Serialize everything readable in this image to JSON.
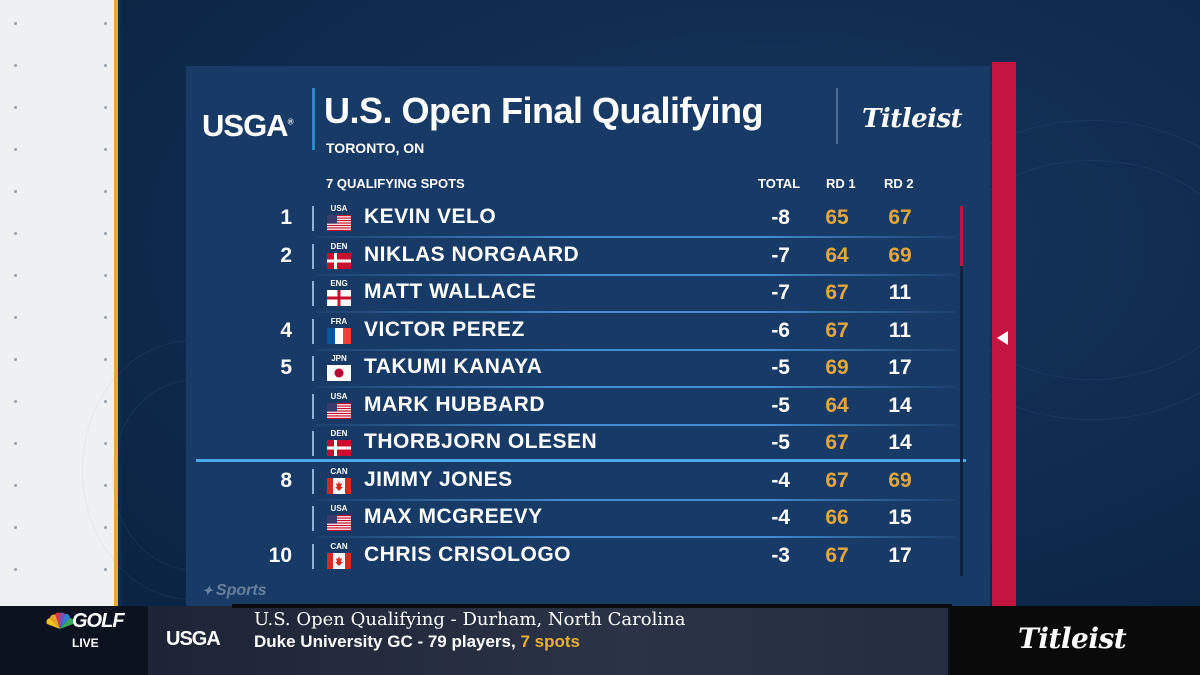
{
  "header": {
    "org_logo": "USGA",
    "title": "U.S. Open Final Qualifying",
    "location": "TORONTO, ON",
    "sponsor_logo": "Titleist"
  },
  "columns": {
    "spots": "7 QUALIFYING SPOTS",
    "total": "TOTAL",
    "rd1": "RD 1",
    "rd2": "RD 2"
  },
  "rows": [
    {
      "pos": "1",
      "country": "USA",
      "name": "KEVIN VELO",
      "total": "-8",
      "rd1": "65",
      "rd2": "67",
      "rd2_final": true
    },
    {
      "pos": "2",
      "country": "DEN",
      "name": "NIKLAS NORGAARD",
      "total": "-7",
      "rd1": "64",
      "rd2": "69",
      "rd2_final": true
    },
    {
      "pos": "",
      "country": "ENG",
      "name": "MATT WALLACE",
      "total": "-7",
      "rd1": "67",
      "rd2": "11",
      "rd2_final": false
    },
    {
      "pos": "4",
      "country": "FRA",
      "name": "VICTOR PEREZ",
      "total": "-6",
      "rd1": "67",
      "rd2": "11",
      "rd2_final": false
    },
    {
      "pos": "5",
      "country": "JPN",
      "name": "TAKUMI KANAYA",
      "total": "-5",
      "rd1": "69",
      "rd2": "17",
      "rd2_final": false
    },
    {
      "pos": "",
      "country": "USA",
      "name": "MARK HUBBARD",
      "total": "-5",
      "rd1": "64",
      "rd2": "14",
      "rd2_final": false
    },
    {
      "pos": "",
      "country": "DEN",
      "name": "THORBJORN OLESEN",
      "total": "-5",
      "rd1": "67",
      "rd2": "14",
      "rd2_final": false
    },
    {
      "pos": "8",
      "country": "CAN",
      "name": "JIMMY JONES",
      "total": "-4",
      "rd1": "67",
      "rd2": "69",
      "rd2_final": true
    },
    {
      "pos": "",
      "country": "USA",
      "name": "MAX MCGREEVY",
      "total": "-4",
      "rd1": "66",
      "rd2": "15",
      "rd2_final": false
    },
    {
      "pos": "10",
      "country": "CAN",
      "name": "CHRIS CRISOLOGO",
      "total": "-3",
      "rd1": "67",
      "rd2": "17",
      "rd2_final": false
    }
  ],
  "watermark": "Sports",
  "ticker": {
    "network": "GOLF",
    "live": "LIVE",
    "org_logo": "USGA",
    "line1": "U.S. Open Qualifying - Durham, North Carolina",
    "line2_prefix": "Duke University GC - 79 players, ",
    "line2_highlight": "7 spots",
    "sponsor_logo": "Titleist"
  },
  "colors": {
    "panel": "#173a66",
    "accent_gold": "#e3a73b",
    "accent_red": "#c41441",
    "cut_line": "#4aa7e8"
  }
}
